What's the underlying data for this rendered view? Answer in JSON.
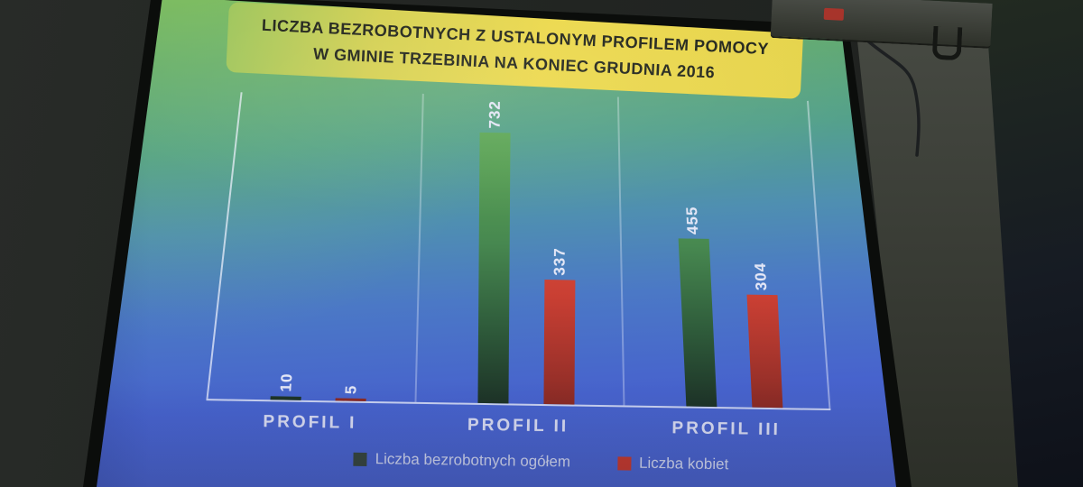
{
  "slide": {
    "title_line1": "LICZBA BEZROBOTNYCH Z USTALONYM PROFILEM POMOCY",
    "title_line2": "W GMINIE TRZEBINIA NA KONIEC GRUDNIA 2016",
    "title_box_colors": [
      "#9fc65e",
      "#ecd84b"
    ],
    "background_gradient": [
      "#79b761",
      "#54a18b",
      "#4763cd"
    ],
    "axis_color": "#eef1fc",
    "label_text_color": "#d7dbf2"
  },
  "chart_data": {
    "type": "bar",
    "title": "LICZBA BEZROBOTNYCH Z USTALONYM PROFILEM POMOCY W GMINIE TRZEBINIA NA KONIEC GRUDNIA 2016",
    "categories": [
      "PROFIL I",
      "PROFIL II",
      "PROFIL III"
    ],
    "series": [
      {
        "name": "Liczba bezrobotnych ogółem",
        "values": [
          10,
          732,
          455
        ],
        "color": "#4a8a4d"
      },
      {
        "name": "Liczba kobiet",
        "values": [
          5,
          337,
          304
        ],
        "color": "#c9402f"
      }
    ],
    "value_labels_shown": true,
    "value_label_rotation_deg": 90,
    "ylim": [
      0,
      770
    ],
    "grid": "vertical category separators only, no horizontal gridlines",
    "legend_position": "bottom"
  }
}
